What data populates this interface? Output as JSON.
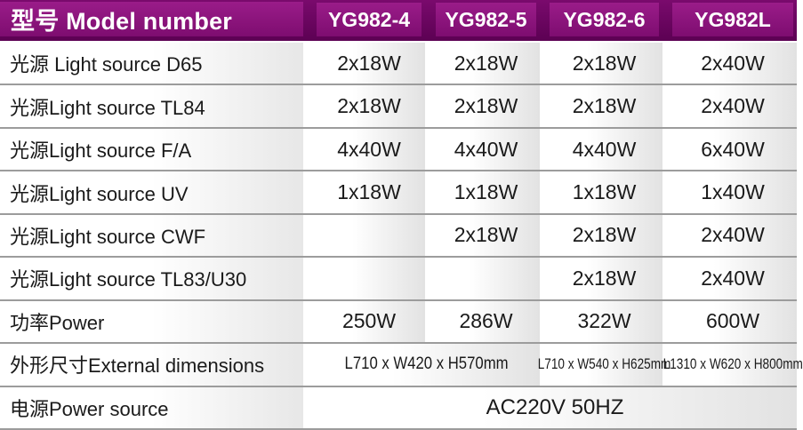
{
  "table": {
    "header": {
      "model_label": "型号 Model number",
      "columns": [
        "YG982-4",
        "YG982-5",
        "YG982-6",
        "YG982L"
      ]
    },
    "rows": [
      {
        "label": "光源 Light source D65",
        "values": [
          "2x18W",
          "2x18W",
          "2x18W",
          "2x40W"
        ]
      },
      {
        "label": "光源Light source TL84",
        "values": [
          "2x18W",
          "2x18W",
          "2x18W",
          "2x40W"
        ]
      },
      {
        "label": "光源Light source F/A",
        "values": [
          "4x40W",
          "4x40W",
          "4x40W",
          "6x40W"
        ]
      },
      {
        "label": "光源Light source UV",
        "values": [
          "1x18W",
          "1x18W",
          "1x18W",
          "1x40W"
        ]
      },
      {
        "label": "光源Light source CWF",
        "values": [
          "",
          "2x18W",
          "2x18W",
          "2x40W"
        ]
      },
      {
        "label": "光源Light source TL83/U30",
        "values": [
          "",
          "",
          "2x18W",
          "2x40W"
        ]
      },
      {
        "label": "功率Power",
        "values": [
          "250W",
          "286W",
          "322W",
          "600W"
        ]
      },
      {
        "label": "外形尺寸External dimensions",
        "dims_span_cols_1_2": "L710 x W420 x H570mm",
        "dims_col_3": "L710 x W540 x H625mm",
        "dims_col_4": "L1310 x W620 x H800mm"
      },
      {
        "label": "电源Power source",
        "span_all_value": "AC220V 50HZ"
      }
    ],
    "colors": {
      "header_band_top": "#7a0a6d",
      "header_band_bottom": "#5c0153",
      "header_cell_top": "#9a1c89",
      "header_cell_bottom": "#7e0d70",
      "separator": "#9c9c9c",
      "cell_fade": "#e2e2e2",
      "header_text": "#ffffff",
      "body_text": "#1a1a1a"
    }
  }
}
